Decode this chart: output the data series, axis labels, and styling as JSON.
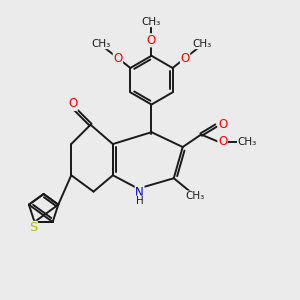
{
  "bg_color": "#ebebeb",
  "bond_color": "#1a1a1a",
  "bond_width": 1.4,
  "atom_colors": {
    "O": "#ff0000",
    "N": "#0000cc",
    "S": "#bbbb00",
    "C": "#1a1a1a",
    "H": "#1a1a1a"
  },
  "font_size": 8.5,
  "fig_size": [
    3.0,
    3.0
  ],
  "dpi": 100,
  "xlim": [
    0,
    10
  ],
  "ylim": [
    0,
    10
  ]
}
